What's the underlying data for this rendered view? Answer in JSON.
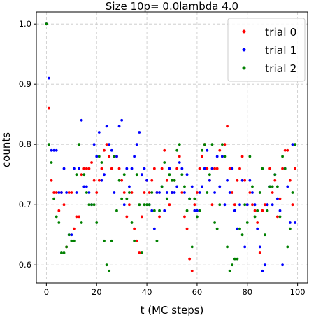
{
  "chart_data": {
    "type": "scatter",
    "title": "Size 10p= 0.0lambda 4.0",
    "xlabel": "t (MC steps)",
    "ylabel": "counts",
    "xlim": [
      -4,
      104
    ],
    "ylim": [
      0.57,
      1.02
    ],
    "xticks": [
      0,
      20,
      40,
      60,
      80,
      100
    ],
    "xtick_labels": [
      "0",
      "20",
      "40",
      "60",
      "80",
      "100"
    ],
    "yticks": [
      0.6,
      0.7,
      0.8,
      0.9,
      1.0
    ],
    "ytick_labels": [
      "0.6",
      "0.7",
      "0.8",
      "0.9",
      "1.0"
    ],
    "grid": true,
    "legend_position": "top-right",
    "series": [
      {
        "name": "trial 0",
        "color": "#ff0000",
        "x": [
          0,
          1,
          2,
          3,
          4,
          5,
          6,
          7,
          8,
          9,
          10,
          11,
          12,
          13,
          14,
          15,
          16,
          17,
          18,
          19,
          20,
          21,
          22,
          23,
          24,
          25,
          26,
          27,
          28,
          29,
          30,
          31,
          32,
          33,
          34,
          35,
          36,
          37,
          38,
          39,
          40,
          41,
          42,
          43,
          44,
          45,
          46,
          47,
          48,
          49,
          50,
          51,
          52,
          53,
          54,
          55,
          56,
          57,
          58,
          59,
          60,
          61,
          62,
          63,
          64,
          65,
          66,
          67,
          68,
          69,
          70,
          71,
          72,
          73,
          74,
          75,
          76,
          77,
          78,
          79,
          80,
          81,
          82,
          83,
          84,
          85,
          86,
          87,
          88,
          89,
          90,
          91,
          92,
          93,
          94,
          95,
          96,
          97,
          98,
          99
        ],
        "y": [
          1.0,
          0.86,
          0.74,
          0.72,
          0.72,
          0.69,
          0.72,
          0.7,
          0.63,
          0.72,
          0.72,
          0.66,
          0.68,
          0.68,
          0.75,
          0.76,
          0.76,
          0.76,
          0.77,
          0.74,
          0.72,
          0.74,
          0.76,
          0.79,
          0.8,
          0.78,
          0.76,
          0.78,
          0.78,
          0.76,
          0.74,
          0.72,
          0.68,
          0.7,
          0.72,
          0.66,
          0.64,
          0.62,
          0.68,
          0.72,
          0.74,
          0.72,
          0.74,
          0.76,
          0.72,
          0.68,
          0.76,
          0.79,
          0.74,
          0.7,
          0.72,
          0.74,
          0.76,
          0.78,
          0.72,
          0.68,
          0.66,
          0.61,
          0.59,
          0.7,
          0.72,
          0.76,
          0.78,
          0.8,
          0.76,
          0.74,
          0.7,
          0.76,
          0.76,
          0.79,
          0.78,
          0.8,
          0.83,
          0.76,
          0.72,
          0.7,
          0.74,
          0.76,
          0.78,
          0.74,
          0.7,
          0.72,
          0.7,
          0.69,
          0.67,
          0.62,
          0.69,
          0.7,
          0.7,
          0.76,
          0.72,
          0.74,
          0.68,
          0.71,
          0.76,
          0.79,
          0.79,
          0.74,
          0.7,
          0.76
        ]
      },
      {
        "name": "trial 1",
        "color": "#0000ff",
        "x": [
          0,
          1,
          2,
          3,
          4,
          5,
          6,
          7,
          8,
          9,
          10,
          11,
          12,
          13,
          14,
          15,
          16,
          17,
          18,
          19,
          20,
          21,
          22,
          23,
          24,
          25,
          26,
          27,
          28,
          29,
          30,
          31,
          32,
          33,
          34,
          35,
          36,
          37,
          38,
          39,
          40,
          41,
          42,
          43,
          44,
          45,
          46,
          47,
          48,
          49,
          50,
          51,
          52,
          53,
          54,
          55,
          56,
          57,
          58,
          59,
          60,
          61,
          62,
          63,
          64,
          65,
          66,
          67,
          68,
          69,
          70,
          71,
          72,
          73,
          74,
          75,
          76,
          77,
          78,
          79,
          80,
          81,
          82,
          83,
          84,
          85,
          86,
          87,
          88,
          89,
          90,
          91,
          92,
          93,
          94,
          95,
          96,
          97,
          98,
          99
        ],
        "y": [
          1.0,
          0.91,
          0.79,
          0.79,
          0.79,
          0.72,
          0.72,
          0.76,
          0.72,
          0.65,
          0.65,
          0.76,
          0.72,
          0.76,
          0.84,
          0.73,
          0.73,
          0.72,
          0.7,
          0.8,
          0.78,
          0.82,
          0.74,
          0.75,
          0.83,
          0.8,
          0.79,
          0.72,
          0.78,
          0.83,
          0.84,
          0.7,
          0.76,
          0.73,
          0.76,
          0.78,
          0.8,
          0.82,
          0.75,
          0.76,
          0.74,
          0.7,
          0.69,
          0.66,
          0.72,
          0.72,
          0.73,
          0.69,
          0.72,
          0.76,
          0.72,
          0.72,
          0.73,
          0.77,
          0.76,
          0.72,
          0.75,
          0.71,
          0.73,
          0.69,
          0.69,
          0.72,
          0.73,
          0.76,
          0.79,
          0.74,
          0.76,
          0.72,
          0.78,
          0.73,
          0.78,
          0.7,
          0.74,
          0.72,
          0.76,
          0.69,
          0.66,
          0.7,
          0.74,
          0.63,
          0.7,
          0.74,
          0.72,
          0.7,
          0.66,
          0.63,
          0.59,
          0.6,
          0.7,
          0.73,
          0.7,
          0.75,
          0.71,
          0.69,
          0.6,
          0.76,
          0.73,
          0.67,
          0.8,
          0.67
        ]
      },
      {
        "name": "trial 2",
        "color": "#008000",
        "x": [
          0,
          1,
          2,
          3,
          4,
          5,
          6,
          7,
          8,
          9,
          10,
          11,
          12,
          13,
          14,
          15,
          16,
          17,
          18,
          19,
          20,
          21,
          22,
          23,
          24,
          25,
          26,
          27,
          28,
          29,
          30,
          31,
          32,
          33,
          34,
          35,
          36,
          37,
          38,
          39,
          40,
          41,
          42,
          43,
          44,
          45,
          46,
          47,
          48,
          49,
          50,
          51,
          52,
          53,
          54,
          55,
          56,
          57,
          58,
          59,
          60,
          61,
          62,
          63,
          64,
          65,
          66,
          67,
          68,
          69,
          70,
          71,
          72,
          73,
          74,
          75,
          76,
          77,
          78,
          79,
          80,
          81,
          82,
          83,
          84,
          85,
          86,
          87,
          88,
          89,
          90,
          91,
          92,
          93,
          94,
          95,
          96,
          97,
          98,
          99
        ],
        "y": [
          1.0,
          0.8,
          0.77,
          0.71,
          0.68,
          0.67,
          0.62,
          0.62,
          0.63,
          0.65,
          0.64,
          0.64,
          0.75,
          0.8,
          0.67,
          0.75,
          0.72,
          0.7,
          0.7,
          0.7,
          0.67,
          0.78,
          0.77,
          0.64,
          0.6,
          0.59,
          0.64,
          0.78,
          0.69,
          0.74,
          0.71,
          0.75,
          0.71,
          0.72,
          0.67,
          0.64,
          0.75,
          0.7,
          0.62,
          0.7,
          0.7,
          0.7,
          0.72,
          0.69,
          0.64,
          0.69,
          0.73,
          0.77,
          0.71,
          0.75,
          0.74,
          0.74,
          0.79,
          0.8,
          0.75,
          0.73,
          0.69,
          0.71,
          0.63,
          0.71,
          0.68,
          0.69,
          0.79,
          0.8,
          0.72,
          0.75,
          0.8,
          0.67,
          0.66,
          0.7,
          0.8,
          0.78,
          0.63,
          0.59,
          0.6,
          0.61,
          0.61,
          0.66,
          0.65,
          0.7,
          0.67,
          0.78,
          0.73,
          0.68,
          0.69,
          0.72,
          0.76,
          0.65,
          0.69,
          0.73,
          0.73,
          0.75,
          0.73,
          0.68,
          0.78,
          0.76,
          0.63,
          0.66,
          0.72,
          0.8
        ]
      }
    ]
  }
}
